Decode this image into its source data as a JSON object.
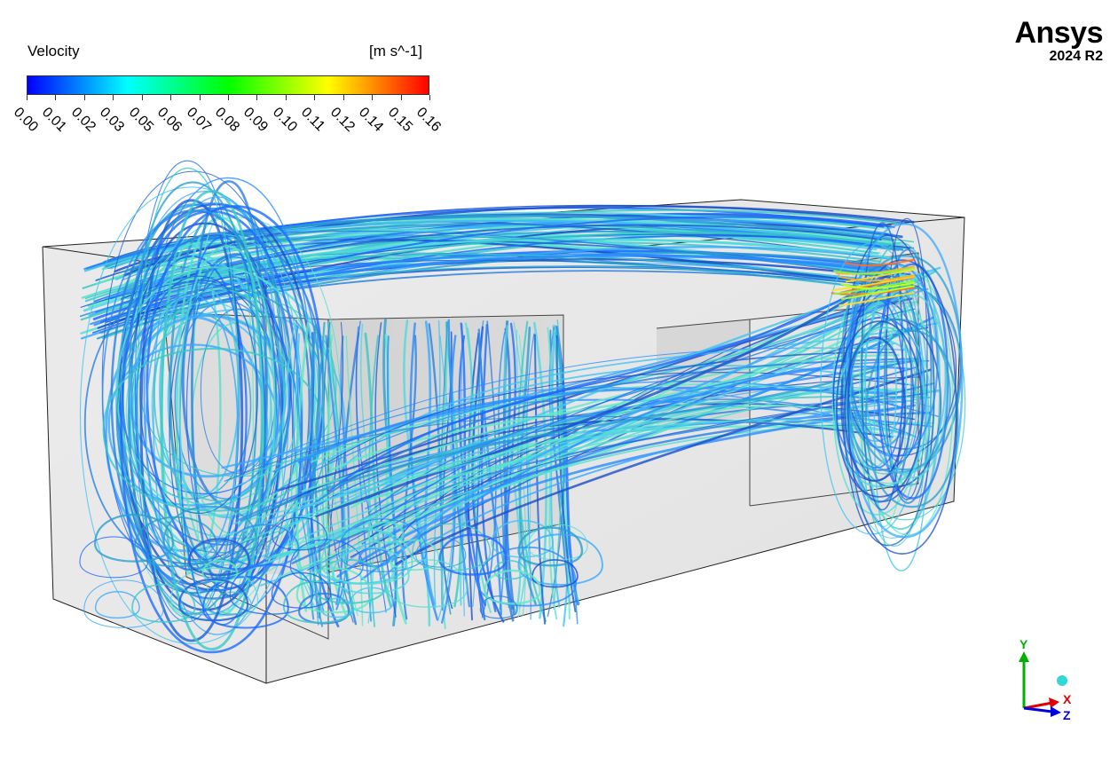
{
  "legend": {
    "title": "Velocity",
    "unit": "[m s^-1]",
    "ticks": [
      "0.00",
      "0.01",
      "0.02",
      "0.03",
      "0.05",
      "0.06",
      "0.07",
      "0.08",
      "0.09",
      "0.10",
      "0.11",
      "0.12",
      "0.14",
      "0.15",
      "0.16"
    ],
    "colormap": [
      "#0000ff",
      "#0080ff",
      "#00ffff",
      "#00ff80",
      "#00ff00",
      "#80ff00",
      "#ffff00",
      "#ff8000",
      "#ff0000"
    ]
  },
  "brand": {
    "name": "Ansys",
    "version": "2024 R2"
  },
  "triad": {
    "y": "Y",
    "x": "X",
    "z": "Z",
    "colors": {
      "y": "#00b000",
      "x": "#e00000",
      "z": "#0000e0"
    }
  }
}
